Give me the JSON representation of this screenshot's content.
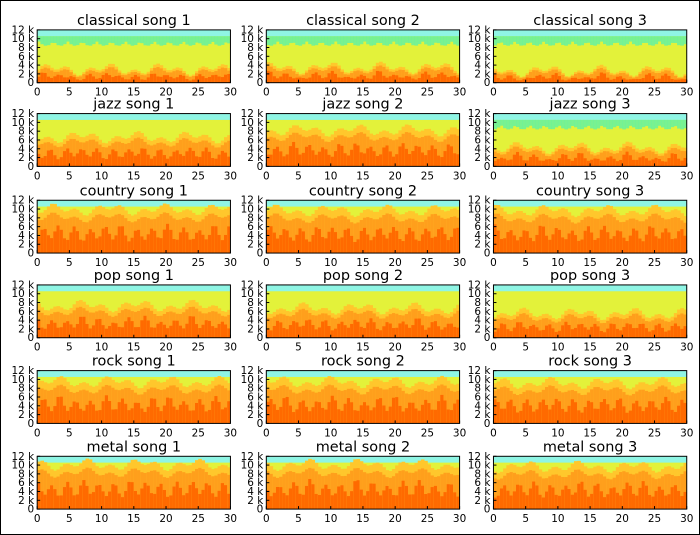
{
  "chart_data": {
    "type": "heatmap",
    "description_grid": "6 rows x 3 columns of spectrograms (time in seconds vs frequency in Hz)",
    "x_ticks": [
      "0",
      "5",
      "10",
      "15",
      "20",
      "25",
      "30"
    ],
    "y_ticks": [
      "0",
      "2 k",
      "4 k",
      "6 k",
      "8 k",
      "10 k",
      "12 k"
    ],
    "xlim": [
      0,
      30
    ],
    "ylim": [
      0,
      12000
    ],
    "colors": {
      "low": "#ff6a00",
      "mid_low": "#ff9f1c",
      "mid": "#ffc72c",
      "mid_high": "#e3f23a",
      "high": "#66f2a0",
      "top": "#8ff5e4"
    },
    "panels": [
      {
        "title": "classical song 1",
        "fill_level": 0.25
      },
      {
        "title": "classical song 2",
        "fill_level": 0.28
      },
      {
        "title": "classical song 3",
        "fill_level": 0.22
      },
      {
        "title": "jazz song 1",
        "fill_level": 0.55
      },
      {
        "title": "jazz song 2",
        "fill_level": 0.68
      },
      {
        "title": "jazz song 3",
        "fill_level": 0.35
      },
      {
        "title": "country song 1",
        "fill_level": 0.82
      },
      {
        "title": "country song 2",
        "fill_level": 0.8
      },
      {
        "title": "country song 3",
        "fill_level": 0.8
      },
      {
        "title": "pop song 1",
        "fill_level": 0.6
      },
      {
        "title": "pop song 2",
        "fill_level": 0.55
      },
      {
        "title": "pop song 3",
        "fill_level": 0.45
      },
      {
        "title": "rock song 1",
        "fill_level": 0.78
      },
      {
        "title": "rock song 2",
        "fill_level": 0.78
      },
      {
        "title": "rock song 3",
        "fill_level": 0.76
      },
      {
        "title": "metal song 1",
        "fill_level": 0.84
      },
      {
        "title": "metal song 2",
        "fill_level": 0.84
      },
      {
        "title": "metal song 3",
        "fill_level": 0.8
      }
    ]
  }
}
